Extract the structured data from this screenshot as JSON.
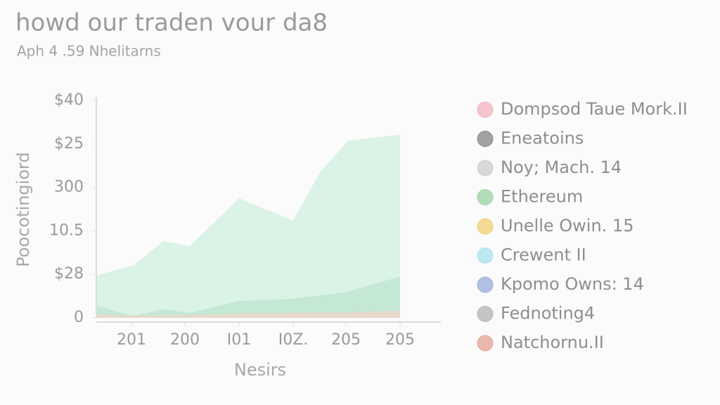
{
  "chart_data": {
    "type": "area",
    "title": "howd our traden vour da8",
    "subtitle": "Aph 4 .59 Nhelitarns",
    "y_label": "Poocotingiord",
    "x_label": "Nesirs",
    "xlim": [
      0,
      490
    ],
    "xticks": [
      {
        "value": 50,
        "label": "201"
      },
      {
        "value": 126,
        "label": "200"
      },
      {
        "value": 203,
        "label": "I01"
      },
      {
        "value": 280,
        "label": "I0Z."
      },
      {
        "value": 355,
        "label": "205"
      },
      {
        "value": 432,
        "label": "205"
      }
    ],
    "ylim": [
      0,
      40
    ],
    "yticks": [
      0,
      {
        "value": 8,
        "label": "$28"
      },
      {
        "value": 16,
        "label": "10.5"
      },
      {
        "value": 24,
        "label": "300"
      },
      {
        "value": 32,
        "label": "$25"
      },
      {
        "value": 40,
        "label": "$40"
      }
    ],
    "series": [
      {
        "color": "#d5f0e3",
        "x": [
          0,
          53,
          95,
          133,
          203,
          280,
          318,
          358,
          432
        ],
        "values": [
          7.8,
          9.7,
          14.1,
          13.2,
          22.0,
          17.9,
          26.8,
          32.6,
          33.7
        ]
      },
      {
        "color": "#bfe6cf",
        "x": [
          0,
          53,
          95,
          133,
          203,
          280,
          358,
          432
        ],
        "values": [
          2.2,
          0.3,
          1.6,
          0.9,
          3.1,
          3.5,
          4.8,
          7.6
        ]
      },
      {
        "color": "#ecd6c8",
        "x": [
          0,
          53,
          133,
          203,
          280,
          358,
          432
        ],
        "values": [
          0.6,
          0.4,
          0.5,
          0.8,
          0.9,
          1.0,
          1.3
        ]
      }
    ],
    "legend": [
      {
        "name": "Dompsod Taue Mork.II",
        "color": "#f2b8c0"
      },
      {
        "name": "Eneatoins",
        "color": "#8c8c8c"
      },
      {
        "name": "Noy; Mach. 14",
        "color": "#d0d0d0"
      },
      {
        "name": "Ethereum",
        "color": "#9fd4a6"
      },
      {
        "name": "Unelle Owin. 15",
        "color": "#f3d27a"
      },
      {
        "name": "Crewent II",
        "color": "#aee4ee"
      },
      {
        "name": "Kpomo Owns: 14",
        "color": "#9fb0dc"
      },
      {
        "name": "Fednoting4",
        "color": "#b8b8b8"
      },
      {
        "name": "Natchornu.II",
        "color": "#e6a898"
      }
    ]
  }
}
